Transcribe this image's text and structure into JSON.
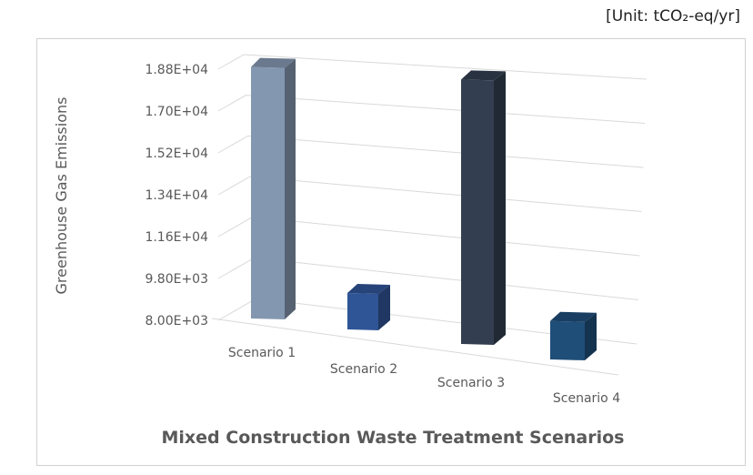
{
  "unit_label": "[Unit: tCO₂-eq/yr]",
  "chart_data": {
    "type": "bar",
    "style": "3d-column",
    "title": "",
    "xlabel": "Mixed Construction Waste Treatment Scenarios",
    "ylabel": "Greenhouse Gas Emissions",
    "categories": [
      "Scenario 1",
      "Scenario 2",
      "Scenario 3",
      "Scenario 4"
    ],
    "values": [
      18600,
      9400,
      18200,
      9200
    ],
    "ylim": [
      8000,
      18800
    ],
    "yticks": [
      "8.00E+03",
      "9.80E+03",
      "1.16E+04",
      "1.34E+04",
      "1.52E+04",
      "1.70E+04",
      "1.88E+04"
    ],
    "grid": true,
    "legend": "none",
    "colors": [
      "#8497b0",
      "#2f5597",
      "#333f50",
      "#1f4e79"
    ]
  }
}
